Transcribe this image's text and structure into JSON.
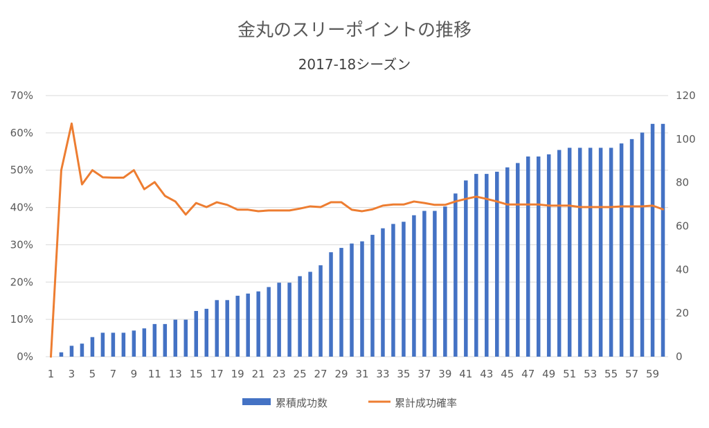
{
  "chart_data": {
    "type": "bar",
    "title": "金丸のスリーポイントの推移",
    "subtitle": "2017-18シーズン",
    "categories": [
      1,
      2,
      3,
      4,
      5,
      6,
      7,
      8,
      9,
      10,
      11,
      12,
      13,
      14,
      15,
      16,
      17,
      18,
      19,
      20,
      21,
      22,
      23,
      24,
      25,
      26,
      27,
      28,
      29,
      30,
      31,
      32,
      33,
      34,
      35,
      36,
      37,
      38,
      39,
      40,
      41,
      42,
      43,
      44,
      45,
      46,
      47,
      48,
      49,
      50,
      51,
      52,
      53,
      54,
      55,
      56,
      57,
      58,
      59,
      60
    ],
    "x_tick_labels": [
      "1",
      "3",
      "5",
      "7",
      "9",
      "11",
      "13",
      "15",
      "17",
      "19",
      "21",
      "23",
      "25",
      "27",
      "29",
      "31",
      "33",
      "35",
      "37",
      "39",
      "41",
      "43",
      "45",
      "47",
      "49",
      "51",
      "53",
      "55",
      "57",
      "59"
    ],
    "series": [
      {
        "name": "累積成功数",
        "type": "bar",
        "axis": "right",
        "color": "#4472C4",
        "values": [
          0,
          2,
          5,
          6,
          9,
          11,
          11,
          11,
          12,
          13,
          15,
          15,
          17,
          17,
          21,
          22,
          26,
          26,
          28,
          29,
          30,
          32,
          34,
          34,
          37,
          39,
          42,
          48,
          50,
          52,
          53,
          56,
          59,
          61,
          62,
          65,
          67,
          67,
          69,
          75,
          81,
          84,
          84,
          85,
          87,
          89,
          92,
          92,
          93,
          95,
          96,
          96,
          96,
          96,
          96,
          98,
          100,
          103,
          107,
          107
        ]
      },
      {
        "name": "累計成功確率",
        "type": "line",
        "axis": "left",
        "color": "#ED7D31",
        "values": [
          0,
          50,
          62.5,
          46.2,
          50,
          48.1,
          48,
          48,
          50,
          44.9,
          46.8,
          43.1,
          41.6,
          38.1,
          41.2,
          40.1,
          41.4,
          40.7,
          39.4,
          39.4,
          39.0,
          39.2,
          39.2,
          39.2,
          39.7,
          40.3,
          40.1,
          41.4,
          41.4,
          39.4,
          39.0,
          39.5,
          40.5,
          40.8,
          40.8,
          41.6,
          41.2,
          40.7,
          40.7,
          41.6,
          42.3,
          42.9,
          42.3,
          41.6,
          40.8,
          40.8,
          40.8,
          40.8,
          40.5,
          40.5,
          40.5,
          40.1,
          40.1,
          40.1,
          40.1,
          40.3,
          40.3,
          40.3,
          40.5,
          39.5
        ]
      }
    ],
    "y_left": {
      "min": 0,
      "max": 70,
      "ticks": [
        0,
        10,
        20,
        30,
        40,
        50,
        60,
        70
      ],
      "tick_labels": [
        "0%",
        "10%",
        "20%",
        "30%",
        "40%",
        "50%",
        "60%",
        "70%"
      ]
    },
    "y_right": {
      "min": 0,
      "max": 120,
      "ticks": [
        0,
        20,
        40,
        60,
        80,
        100,
        120
      ],
      "tick_labels": [
        "0",
        "20",
        "40",
        "60",
        "80",
        "100",
        "120"
      ]
    },
    "grid": true,
    "legend": "bottom"
  }
}
